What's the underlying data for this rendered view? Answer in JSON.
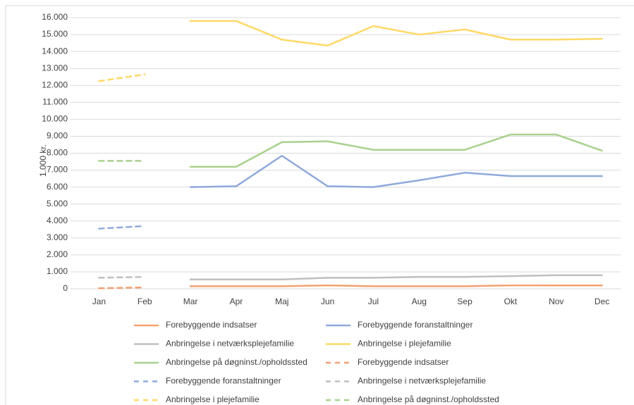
{
  "chart_data": {
    "type": "line",
    "y_label": "1.000 kr.",
    "categories": [
      "Jan",
      "Feb",
      "Mar",
      "Apr",
      "Maj",
      "Jun",
      "Jul",
      "Aug",
      "Sep",
      "Okt",
      "Nov",
      "Dec"
    ],
    "ylim": [
      0,
      16000
    ],
    "yticks": [
      0,
      {
        "value": 1000,
        "label": "1.000"
      },
      {
        "value": 2000,
        "label": "2.000"
      },
      {
        "value": 3000,
        "label": "3.000"
      },
      {
        "value": 4000,
        "label": "4.000"
      },
      {
        "value": 5000,
        "label": "5.000"
      },
      {
        "value": 6000,
        "label": "6.000"
      },
      {
        "value": 7000,
        "label": "7.000"
      },
      {
        "value": 8000,
        "label": "8.000"
      },
      {
        "value": 9000,
        "label": "9.000"
      },
      {
        "value": 10000,
        "label": "10.000"
      },
      {
        "value": 11000,
        "label": "11.000"
      },
      {
        "value": 12000,
        "label": "12.000"
      },
      {
        "value": 13000,
        "label": "13.000"
      },
      {
        "value": 14000,
        "label": "14.000"
      },
      {
        "value": 15000,
        "label": "15.000"
      },
      {
        "value": 16000,
        "label": "16.000"
      }
    ],
    "grid": true,
    "legend": "bottom",
    "series": [
      {
        "name": "Forebyggende indsatser",
        "color": "#f4a070",
        "style": "solid",
        "values": [
          null,
          null,
          150,
          150,
          150,
          200,
          150,
          150,
          150,
          200,
          200,
          200
        ]
      },
      {
        "name": "Forebyggende foranstaltninger",
        "color": "#8faadc",
        "style": "solid",
        "values": [
          null,
          null,
          6000,
          6050,
          7850,
          6050,
          6000,
          6400,
          6850,
          6650,
          6650,
          6650
        ]
      },
      {
        "name": "Anbringelse i netværksplejefamilie",
        "color": "#bfbfbf",
        "style": "solid",
        "values": [
          null,
          null,
          550,
          550,
          550,
          650,
          650,
          700,
          700,
          750,
          800,
          800
        ]
      },
      {
        "name": "Anbringelse i plejefamilie",
        "color": "#ffd966",
        "style": "solid",
        "values": [
          null,
          null,
          15800,
          15800,
          14700,
          14350,
          15500,
          15000,
          15300,
          14700,
          14700,
          14750
        ]
      },
      {
        "name": "Anbringelse på døgninst./opholdssted",
        "color": "#a9d18e",
        "style": "solid",
        "values": [
          null,
          null,
          7200,
          7200,
          8650,
          8700,
          8200,
          8200,
          8200,
          9100,
          9100,
          8150
        ]
      },
      {
        "name": "Forebyggende indsatser",
        "color": "#f4a070",
        "style": "dashed",
        "values": [
          30,
          80,
          null,
          null,
          null,
          null,
          null,
          null,
          null,
          null,
          null,
          null
        ]
      },
      {
        "name": "Forebyggende foranstaltninger",
        "color": "#8faadc",
        "style": "dashed",
        "values": [
          3550,
          3700,
          null,
          null,
          null,
          null,
          null,
          null,
          null,
          null,
          null,
          null
        ]
      },
      {
        "name": "Anbringelse i netværksplejefamilie",
        "color": "#bfbfbf",
        "style": "dashed",
        "values": [
          650,
          700,
          null,
          null,
          null,
          null,
          null,
          null,
          null,
          null,
          null,
          null
        ]
      },
      {
        "name": "Anbringelse i plejefamilie",
        "color": "#ffd966",
        "style": "dashed",
        "values": [
          12250,
          12650,
          null,
          null,
          null,
          null,
          null,
          null,
          null,
          null,
          null,
          null
        ]
      },
      {
        "name": "Anbringelse på døgninst./opholdssted",
        "color": "#a9d18e",
        "style": "dashed",
        "values": [
          7550,
          7550,
          null,
          null,
          null,
          null,
          null,
          null,
          null,
          null,
          null,
          null
        ]
      }
    ]
  }
}
